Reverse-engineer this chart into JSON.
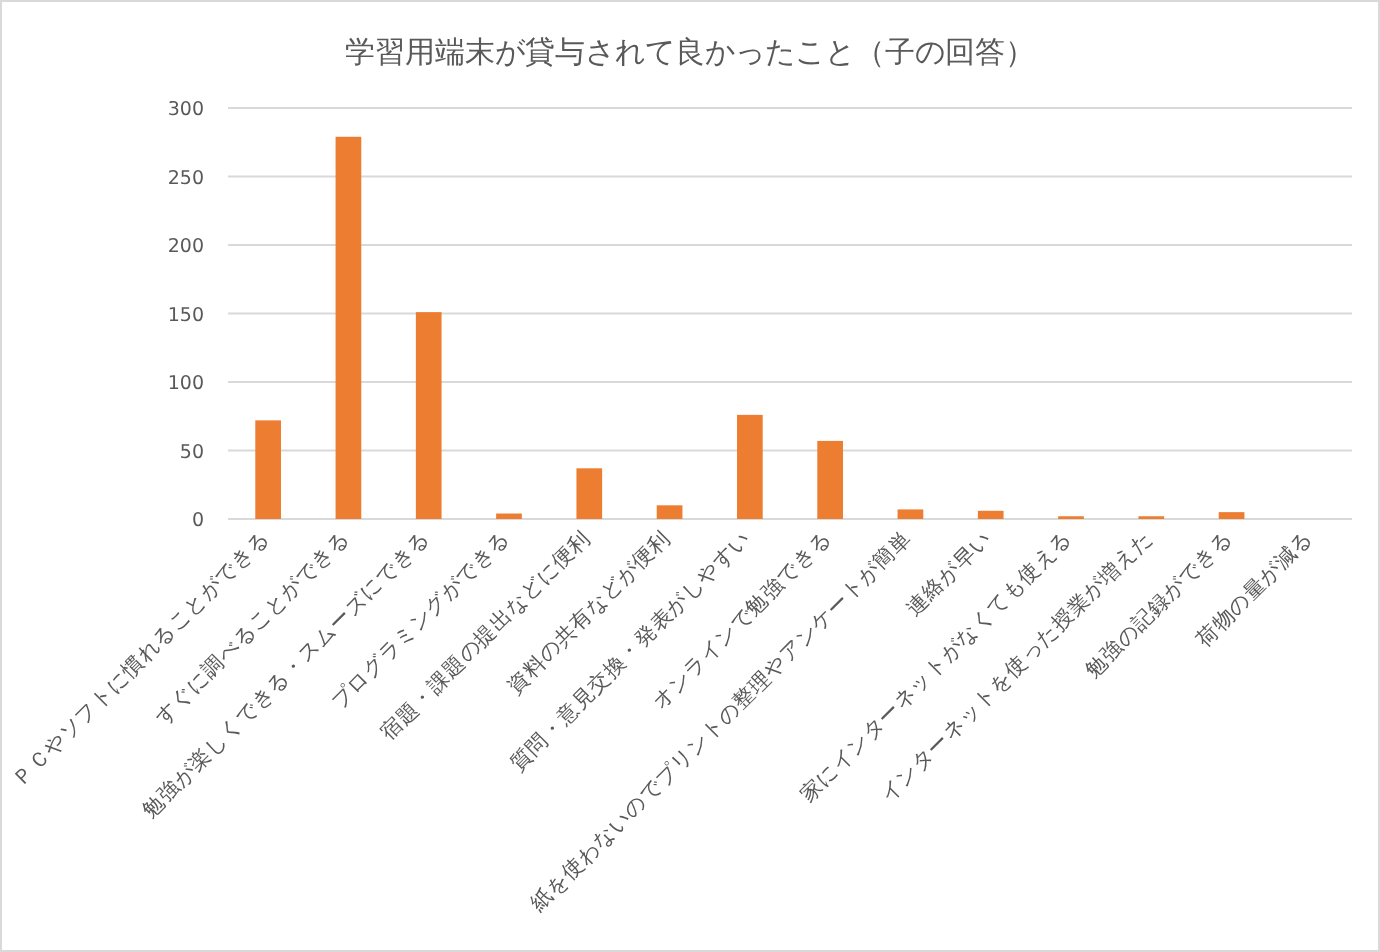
{
  "chart_data": {
    "type": "bar",
    "title": "学習用端末が貸与されて良かったこと（子の回答）",
    "categories": [
      "ＰＣやソフトに慣れることができる",
      "すぐに調べることができる",
      "勉強が楽しくできる・スムーズにできる",
      "プログラミングができる",
      "宿題・課題の提出などに便利",
      "資料の共有などが便利",
      "質問・意見交換・発表がしやすい",
      "オンラインで勉強できる",
      "紙を使わないのでプリントの整理やアンケートが簡単",
      "連絡が早い",
      "家にインターネットがなくても使える",
      "インターネットを使った授業が増えた",
      "勉強の記録ができる",
      "荷物の量が減る"
    ],
    "values": [
      72,
      279,
      151,
      4,
      37,
      10,
      76,
      57,
      7,
      6,
      2,
      2,
      5,
      0
    ],
    "color": "#ed7d31",
    "ylim": [
      0,
      300
    ],
    "yticks": [
      0,
      50,
      100,
      150,
      200,
      250,
      300
    ],
    "grid": "y"
  }
}
